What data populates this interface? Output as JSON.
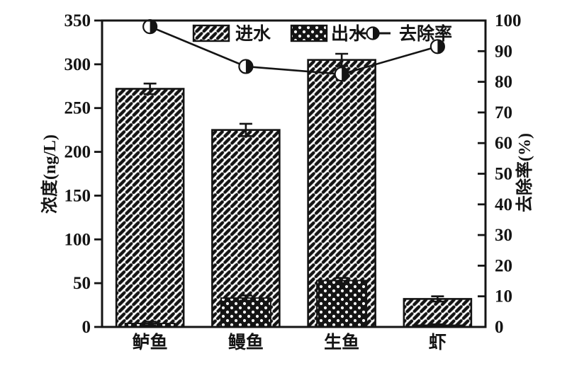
{
  "chart_data": {
    "type": "bar",
    "title": "",
    "categories": [
      "鲈鱼",
      "鳗鱼",
      "生鱼",
      "虾"
    ],
    "series": [
      {
        "name": "进水",
        "type": "bar",
        "axis": "left",
        "pattern": "diagonal-hatch",
        "values": [
          272,
          225,
          305,
          32
        ],
        "errors": [
          6,
          7,
          7,
          3
        ]
      },
      {
        "name": "出水",
        "type": "bar",
        "axis": "left",
        "pattern": "black-with-white-dots",
        "values": [
          4,
          33,
          53,
          2
        ],
        "errors": [
          2,
          3,
          3,
          1
        ]
      },
      {
        "name": "去除率",
        "type": "line",
        "axis": "right",
        "marker": "right-half-filled-circle",
        "values": [
          98,
          85,
          82.5,
          91.5
        ]
      }
    ],
    "left_axis": {
      "label": "浓度(ng/L)",
      "min": 0,
      "max": 350,
      "step": 50,
      "tick_labels": [
        "0",
        "50",
        "100",
        "150",
        "200",
        "250",
        "300",
        "350"
      ]
    },
    "right_axis": {
      "label": "去除率(%)",
      "min": 0,
      "max": 100,
      "step": 10,
      "tick_labels": [
        "0",
        "10",
        "20",
        "30",
        "40",
        "50",
        "60",
        "70",
        "80",
        "90",
        "100"
      ]
    },
    "legend": {
      "position": "top-inside",
      "items": [
        "进水",
        "出水",
        "去除率"
      ]
    },
    "grid": false,
    "frame": true,
    "colors": {
      "ink": "#141414",
      "background": "#ffffff"
    }
  }
}
